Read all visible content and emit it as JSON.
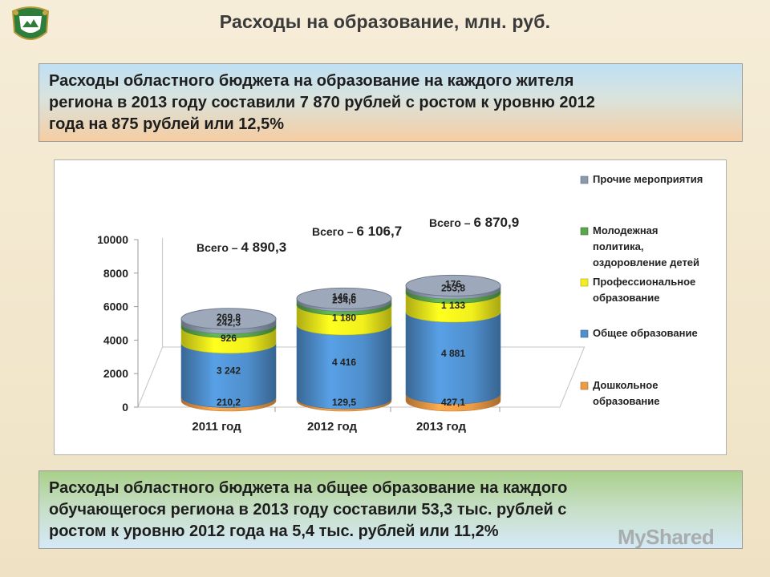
{
  "header": {
    "title": "Расходы на образование, млн. руб."
  },
  "info_top": {
    "lines": [
      "Расходы областного бюджета на образование на каждого жителя",
      "региона в 2013 году составили 7 870 рублей с ростом к уровню 2012",
      "года на 875 рублей или 12,5%"
    ]
  },
  "info_bottom": {
    "lines": [
      "Расходы областного бюджета на общее образование на каждого",
      "обучающегося региона в 2013 году составили 53,3 тыс. рублей с",
      "ростом к уровню 2012 года на 5,4 тыс. рублей или 11,2%"
    ]
  },
  "watermark": "MyShared",
  "chart_data": {
    "type": "bar",
    "stacked": true,
    "style": "3d-cylinder",
    "categories": [
      "2011 год",
      "2012 год",
      "2013 год"
    ],
    "ylim": [
      0,
      10000
    ],
    "yticks": [
      "0",
      "2000",
      "4000",
      "6000",
      "8000",
      "10000"
    ],
    "grid": false,
    "legend_position": "right",
    "series": [
      {
        "name": "Дошкольное образование",
        "color": "#ec9a45",
        "values": [
          210.2,
          129.5,
          427.1
        ],
        "labels": [
          "210,2",
          "129,5",
          "427,1"
        ]
      },
      {
        "name": "Общее образование",
        "color": "#4f8fcd",
        "values": [
          3242,
          4416,
          4881
        ],
        "labels": [
          "3 242",
          "4 416",
          "4 881"
        ]
      },
      {
        "name": "Профессиональное образование",
        "color": "#f2ef1c",
        "values": [
          926,
          1180,
          1133
        ],
        "labels": [
          "926",
          "1 180",
          "1 133"
        ]
      },
      {
        "name": "Молодежная политика, оздоровление детей",
        "color": "#5aa64c",
        "values": [
          242.3,
          234.6,
          253.8
        ],
        "labels": [
          "242,3",
          "234,6",
          "253,8"
        ]
      },
      {
        "name": "Прочие мероприятия",
        "color": "#8b99ad",
        "values": [
          269.8,
          146.6,
          176
        ],
        "labels": [
          "269,8",
          "146,6",
          "176"
        ]
      }
    ],
    "totals": [
      {
        "prefix": "Всего –",
        "value": "4 890,3"
      },
      {
        "prefix": "Всего –",
        "value": "6 106,7"
      },
      {
        "prefix": "Всего –",
        "value": "6 870,9"
      }
    ],
    "legend": [
      {
        "lines": [
          "Прочие мероприятия"
        ],
        "color": "#8b99ad"
      },
      {
        "lines": [
          "Молодежная",
          "политика,",
          "оздоровление детей"
        ],
        "color": "#5aa64c"
      },
      {
        "lines": [
          "Профессиональное",
          "образование"
        ],
        "color": "#f2ef1c"
      },
      {
        "lines": [
          "Общее образование"
        ],
        "color": "#4f8fcd"
      },
      {
        "lines": [
          "Дошкольное",
          "образование"
        ],
        "color": "#ec9a45"
      }
    ]
  }
}
